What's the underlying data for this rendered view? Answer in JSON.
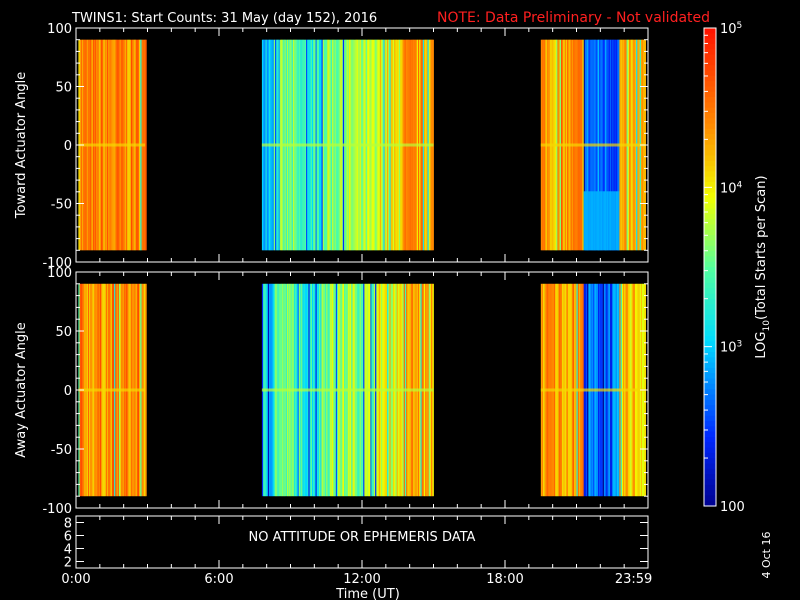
{
  "title": "TWINS1: Start Counts: 31 May (day 152), 2016",
  "note": "NOTE: Data Preliminary - Not validated",
  "colors": {
    "note": "#ff2020",
    "background": "#000000",
    "axes": "#ffffff"
  },
  "chart_data": {
    "type": "heatmap",
    "x_ticks": [
      "0:00",
      "6:00",
      "12:00",
      "18:00",
      "23:59"
    ],
    "xlabel": "Time (UT)",
    "data_intervals_ut": [
      [
        0.1,
        2.9
      ],
      [
        7.8,
        15.0
      ],
      [
        19.5,
        23.9
      ]
    ],
    "panels": [
      {
        "ylabel": "Toward Actuator Angle",
        "ylim": [
          -100,
          100
        ],
        "y_ticks": [
          "100",
          "50",
          "0",
          "-50",
          "-100"
        ],
        "data_range": [
          -90,
          90
        ]
      },
      {
        "ylabel": "Away Actuator Angle",
        "ylim": [
          -100,
          100
        ],
        "y_ticks": [
          "100",
          "50",
          "0",
          "-50",
          "-100"
        ],
        "data_range": [
          -90,
          90
        ]
      },
      {
        "ylabel": "",
        "ylim": [
          1,
          9
        ],
        "y_ticks": [
          "8",
          "6",
          "4",
          "2"
        ],
        "message": "NO ATTITUDE OR EPHEMERIS DATA"
      }
    ],
    "colorbar": {
      "label": "LOG10(Total Starts per Scan)",
      "label_parts": {
        "pre": "LOG",
        "sub": "10",
        "post": "(Total Starts per Scan)"
      },
      "scale": "log",
      "range": [
        100,
        100000
      ],
      "ticks": [
        {
          "value": 100000,
          "base": "10",
          "exp": "5"
        },
        {
          "value": 10000,
          "base": "10",
          "exp": "4"
        },
        {
          "value": 1000,
          "base": "10",
          "exp": "3"
        },
        {
          "value": 100,
          "base": "100",
          "exp": ""
        }
      ]
    }
  },
  "footer_date": "4 Oct 16"
}
